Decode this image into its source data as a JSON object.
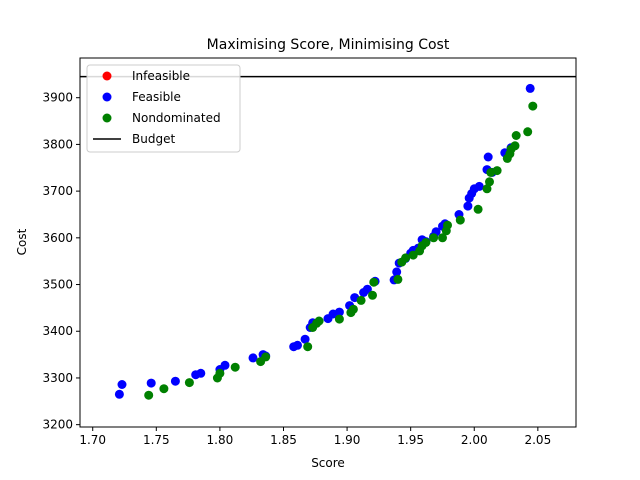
{
  "chart_data": {
    "type": "scatter",
    "title": "Maximising Score, Minimising Cost",
    "xlabel": "Score",
    "ylabel": "Cost",
    "xlim": [
      1.69,
      2.08
    ],
    "ylim": [
      3195,
      3985
    ],
    "xticks": [
      1.7,
      1.75,
      1.8,
      1.85,
      1.9,
      1.95,
      2.0,
      2.05
    ],
    "xtick_labels": [
      "1.70",
      "1.75",
      "1.80",
      "1.85",
      "1.90",
      "1.95",
      "2.00",
      "2.05"
    ],
    "yticks": [
      3200,
      3300,
      3400,
      3500,
      3600,
      3700,
      3800,
      3900
    ],
    "ytick_labels": [
      "3200",
      "3300",
      "3400",
      "3500",
      "3600",
      "3700",
      "3800",
      "3900"
    ],
    "grid": false,
    "legend_position": "top-left",
    "budget": {
      "name": "Budget",
      "value": 3945,
      "color": "#000000"
    },
    "series": [
      {
        "name": "Infeasible",
        "color": "#ff0000",
        "points": []
      },
      {
        "name": "Feasible",
        "color": "#0000ff",
        "points": [
          [
            1.721,
            3265
          ],
          [
            1.723,
            3286
          ],
          [
            1.746,
            3289
          ],
          [
            1.765,
            3293
          ],
          [
            1.781,
            3307
          ],
          [
            1.785,
            3310
          ],
          [
            1.8,
            3318
          ],
          [
            1.804,
            3327
          ],
          [
            1.826,
            3343
          ],
          [
            1.834,
            3350
          ],
          [
            1.836,
            3347
          ],
          [
            1.858,
            3367
          ],
          [
            1.861,
            3370
          ],
          [
            1.867,
            3383
          ],
          [
            1.871,
            3408
          ],
          [
            1.873,
            3418
          ],
          [
            1.885,
            3427
          ],
          [
            1.889,
            3437
          ],
          [
            1.894,
            3441
          ],
          [
            1.902,
            3455
          ],
          [
            1.906,
            3472
          ],
          [
            1.913,
            3483
          ],
          [
            1.916,
            3490
          ],
          [
            1.922,
            3507
          ],
          [
            1.937,
            3510
          ],
          [
            1.939,
            3527
          ],
          [
            1.941,
            3546
          ],
          [
            1.946,
            3556
          ],
          [
            1.95,
            3567
          ],
          [
            1.952,
            3573
          ],
          [
            1.956,
            3578
          ],
          [
            1.959,
            3596
          ],
          [
            1.962,
            3592
          ],
          [
            1.968,
            3603
          ],
          [
            1.97,
            3613
          ],
          [
            1.975,
            3625
          ],
          [
            1.977,
            3630
          ],
          [
            1.988,
            3650
          ],
          [
            1.995,
            3668
          ],
          [
            1.996,
            3685
          ],
          [
            1.998,
            3695
          ],
          [
            2.0,
            3705
          ],
          [
            2.004,
            3710
          ],
          [
            2.01,
            3746
          ],
          [
            2.011,
            3773
          ],
          [
            2.014,
            3740
          ],
          [
            2.024,
            3782
          ],
          [
            2.026,
            3775
          ],
          [
            2.029,
            3793
          ],
          [
            2.044,
            3920
          ]
        ]
      },
      {
        "name": "Nondominated",
        "color": "#008000",
        "points": [
          [
            1.744,
            3263
          ],
          [
            1.756,
            3277
          ],
          [
            1.776,
            3290
          ],
          [
            1.798,
            3300
          ],
          [
            1.8,
            3310
          ],
          [
            1.812,
            3323
          ],
          [
            1.832,
            3335
          ],
          [
            1.836,
            3345
          ],
          [
            1.869,
            3367
          ],
          [
            1.873,
            3408
          ],
          [
            1.876,
            3417
          ],
          [
            1.878,
            3422
          ],
          [
            1.894,
            3426
          ],
          [
            1.903,
            3440
          ],
          [
            1.905,
            3447
          ],
          [
            1.911,
            3466
          ],
          [
            1.92,
            3477
          ],
          [
            1.921,
            3505
          ],
          [
            1.94,
            3511
          ],
          [
            1.943,
            3548
          ],
          [
            1.946,
            3557
          ],
          [
            1.952,
            3563
          ],
          [
            1.957,
            3572
          ],
          [
            1.959,
            3583
          ],
          [
            1.962,
            3590
          ],
          [
            1.968,
            3600
          ],
          [
            1.975,
            3600
          ],
          [
            1.978,
            3615
          ],
          [
            1.979,
            3627
          ],
          [
            1.989,
            3638
          ],
          [
            2.003,
            3661
          ],
          [
            2.01,
            3705
          ],
          [
            2.012,
            3720
          ],
          [
            2.013,
            3740
          ],
          [
            2.018,
            3744
          ],
          [
            2.026,
            3770
          ],
          [
            2.028,
            3780
          ],
          [
            2.029,
            3790
          ],
          [
            2.032,
            3797
          ],
          [
            2.033,
            3819
          ],
          [
            2.042,
            3827
          ],
          [
            2.046,
            3882
          ]
        ]
      }
    ]
  }
}
